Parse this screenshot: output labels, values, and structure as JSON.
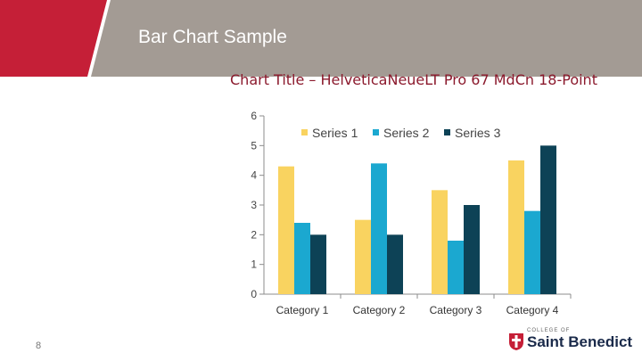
{
  "slide": {
    "title": "Bar Chart Sample",
    "page_number": "8"
  },
  "colors": {
    "header_red": "#c51f37",
    "header_gray": "#a39b94",
    "title_red": "#8b1a2d",
    "series_1": "#f9d360",
    "series_2": "#1ba8d0",
    "series_3": "#0d4256"
  },
  "logo": {
    "small_text": "COLLEGE OF",
    "name": "Saint Benedict",
    "icon": "cross-shield-icon"
  },
  "chart_data": {
    "type": "bar",
    "title": "Chart Title – HelveticaNeueLT Pro 67 MdCn 18-Point",
    "categories": [
      "Category 1",
      "Category 2",
      "Category 3",
      "Category 4"
    ],
    "series": [
      {
        "name": "Series 1",
        "values": [
          4.3,
          2.5,
          3.5,
          4.5
        ]
      },
      {
        "name": "Series 2",
        "values": [
          2.4,
          4.4,
          1.8,
          2.8
        ]
      },
      {
        "name": "Series 3",
        "values": [
          2,
          2,
          3,
          5
        ]
      }
    ],
    "ylim": [
      0,
      6
    ],
    "yticks": [
      "0",
      "1",
      "2",
      "3",
      "4",
      "5",
      "6"
    ],
    "grid": false,
    "legend_position": "top"
  }
}
